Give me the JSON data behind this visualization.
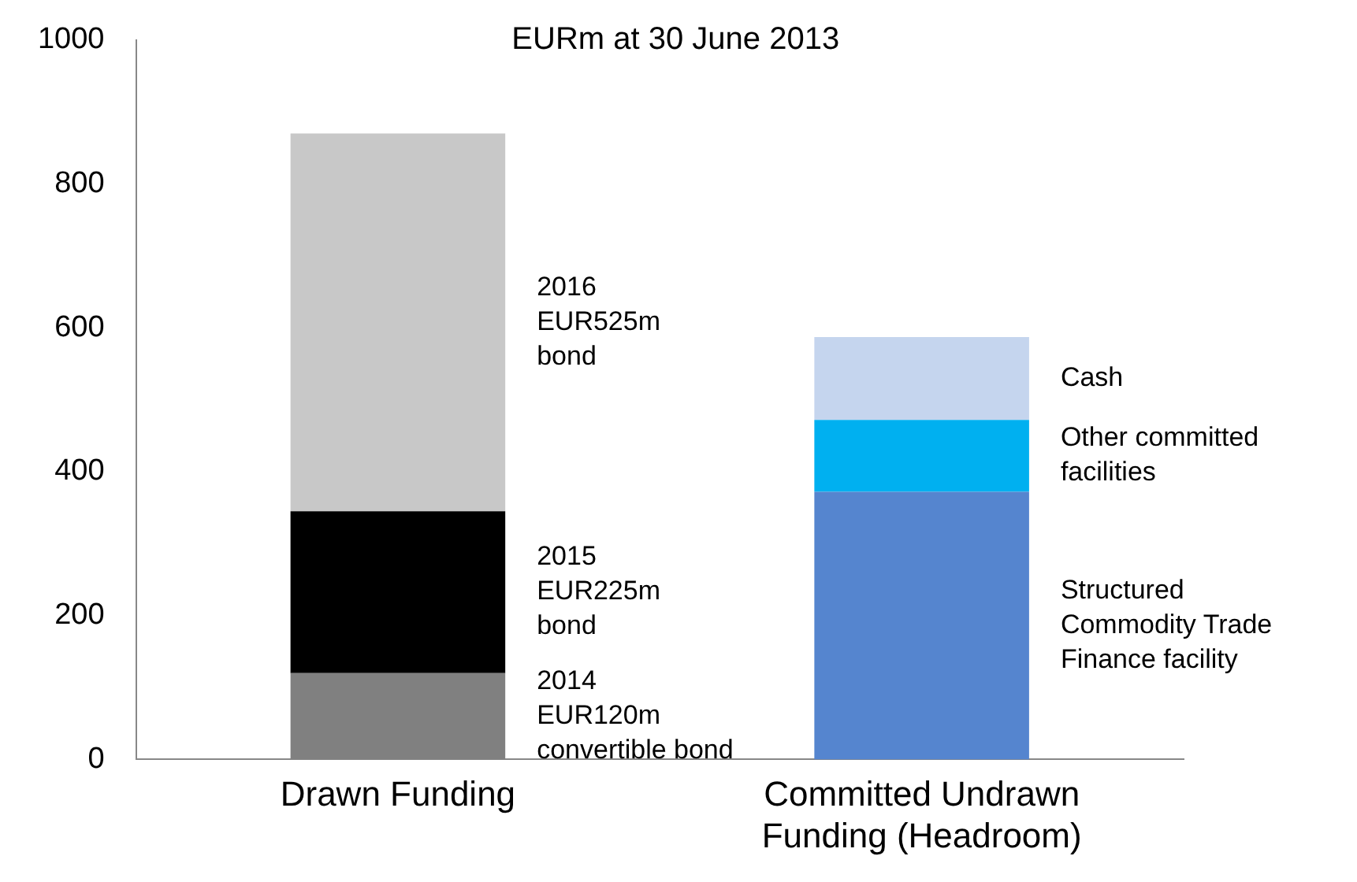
{
  "chart_data": {
    "type": "bar",
    "title": "EURm at 30 June 2013",
    "stacked": true,
    "categories": [
      "Drawn Funding",
      "Committed Undrawn Funding (Headroom)"
    ],
    "series": [
      {
        "name": "2014\nEUR120m\nconvertible bond",
        "color": "#808080",
        "values": [
          120,
          null
        ]
      },
      {
        "name": "2015\nEUR225m\nbond",
        "color": "#000000",
        "values": [
          225,
          null
        ]
      },
      {
        "name": "2016\nEUR525m\nbond",
        "color": "#c8c8c8",
        "values": [
          525,
          null
        ]
      },
      {
        "name": "Structured\nCommodity Trade\nFinance facility",
        "color": "#5585cf",
        "values": [
          null,
          372
        ]
      },
      {
        "name": "Other committed\nfacilities",
        "color": "#00b0f0",
        "values": [
          null,
          100
        ]
      },
      {
        "name": "Cash",
        "color": "#c5d5ee",
        "values": [
          null,
          115
        ]
      }
    ],
    "ylim": [
      0,
      1000
    ],
    "yticks": [
      0,
      200,
      400,
      600,
      800,
      1000
    ],
    "grid": false,
    "legend": false
  }
}
